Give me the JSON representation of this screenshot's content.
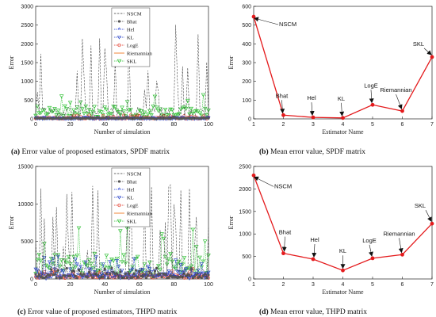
{
  "colors": {
    "NSCM": "#3a3a3a",
    "Bhat": "#555555",
    "Hel": "#1f3bd6",
    "KL": "#2742c8",
    "LogE": "#e23a2a",
    "Riemannian": "#f07a24",
    "SKL": "#35c23a",
    "mean_line": "#e41a1c"
  },
  "chart_data": [
    {
      "type": "line",
      "caption_tag": "(a)",
      "caption_text": " Error value of proposed estimators, SPDF matrix",
      "xlabel": "Number of simulation",
      "ylabel": "Error",
      "xlim": [
        0,
        100
      ],
      "ylim": [
        0,
        3000
      ],
      "xticks": [
        0,
        20,
        40,
        60,
        80,
        100
      ],
      "yticks": [
        0,
        500,
        1000,
        1500,
        2000,
        2500,
        3000
      ],
      "legend": [
        "NSCM",
        "Bhat",
        "Hel",
        "KL",
        "LogE",
        "Riemannian",
        "SKL"
      ],
      "legend_position": "top-center",
      "series_ranges": {
        "NSCM": [
          0,
          2600
        ],
        "Bhat": [
          0,
          60
        ],
        "Hel": [
          0,
          30
        ],
        "KL": [
          0,
          40
        ],
        "LogE": [
          0,
          100
        ],
        "Riemannian": [
          0,
          60
        ],
        "SKL": [
          50,
          700
        ]
      }
    },
    {
      "type": "line",
      "caption_tag": "(b)",
      "caption_text": " Mean error value, SPDF matrix",
      "xlabel": "Estimator Name",
      "ylabel": "Error",
      "xlim": [
        1,
        7
      ],
      "ylim": [
        0,
        600
      ],
      "xticks": [
        1,
        2,
        3,
        4,
        5,
        6,
        7
      ],
      "yticks": [
        0,
        100,
        200,
        300,
        400,
        500,
        600
      ],
      "series": [
        {
          "x": [
            1,
            2,
            3,
            4,
            5,
            6,
            7
          ],
          "values": [
            545,
            20,
            8,
            5,
            75,
            42,
            330
          ],
          "labels": [
            "NSCM",
            "Bhat",
            "Hel",
            "KL",
            "LogE",
            "Riemannian",
            "SKL"
          ]
        }
      ]
    },
    {
      "type": "line",
      "caption_tag": "(c)",
      "caption_text": " Error value of proposed estimators, THPD matrix",
      "xlabel": "Number of simulation",
      "ylabel": "Error",
      "xlim": [
        0,
        100
      ],
      "ylim": [
        0,
        15000
      ],
      "xticks": [
        0,
        20,
        40,
        60,
        80,
        100
      ],
      "yticks": [
        0,
        5000,
        10000,
        15000
      ],
      "legend": [
        "NSCM",
        "Bhat",
        "Hel",
        "KL",
        "LogE",
        "Riemannian",
        "SKL"
      ],
      "legend_position": "top-center",
      "series_ranges": {
        "NSCM": [
          0,
          12700
        ],
        "Bhat": [
          100,
          1500
        ],
        "Hel": [
          100,
          1200
        ],
        "KL": [
          50,
          3000
        ],
        "LogE": [
          100,
          1400
        ],
        "Riemannian": [
          100,
          1400
        ],
        "SKL": [
          200,
          7500
        ]
      }
    },
    {
      "type": "line",
      "caption_tag": "(d)",
      "caption_text": " Mean error value, THPD matrix",
      "xlabel": "Estimator Name",
      "ylabel": "Error",
      "xlim": [
        1,
        7
      ],
      "ylim": [
        0,
        2500
      ],
      "xticks": [
        1,
        2,
        3,
        4,
        5,
        6,
        7
      ],
      "yticks": [
        0,
        500,
        1000,
        1500,
        2000,
        2500
      ],
      "series": [
        {
          "x": [
            1,
            2,
            3,
            4,
            5,
            6,
            7
          ],
          "values": [
            2300,
            570,
            440,
            190,
            460,
            540,
            1230
          ],
          "labels": [
            "NSCM",
            "Bhat",
            "Hel",
            "KL",
            "LogE",
            "Riemannian",
            "SKL"
          ]
        }
      ]
    }
  ]
}
